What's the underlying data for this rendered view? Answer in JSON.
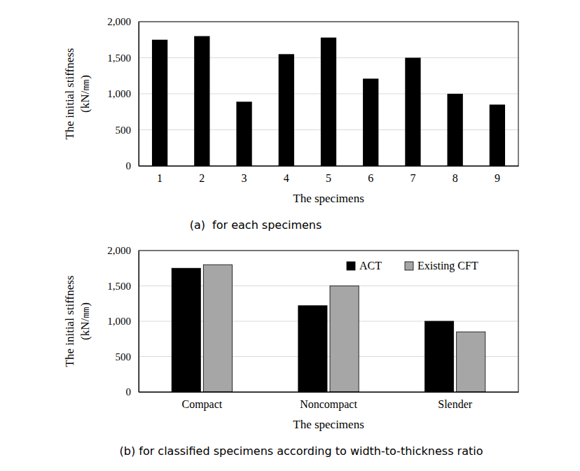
{
  "chart_data": [
    {
      "type": "bar",
      "title": "(a)  for each specimens",
      "xlabel": "The specimens",
      "ylabel": [
        "The initial stiffness",
        "(kN/㎜)"
      ],
      "categories": [
        "1",
        "2",
        "3",
        "4",
        "5",
        "6",
        "7",
        "8",
        "9"
      ],
      "values": [
        1750,
        1800,
        890,
        1550,
        1780,
        1210,
        1500,
        1000,
        850
      ],
      "color": "#000000",
      "ylim": [
        0,
        2000
      ],
      "yticks": [
        0,
        500,
        {
          "value": 1000,
          "label": "1,000"
        },
        {
          "value": 1500,
          "label": "1,500"
        },
        {
          "value": 2000,
          "label": "2,000"
        }
      ],
      "grid": true
    },
    {
      "type": "bar",
      "title": "(b) for classified specimens according to width-to-thickness ratio",
      "xlabel": "The specimens",
      "ylabel": [
        "The initial stiffness",
        "(kN/㎜)"
      ],
      "categories": [
        "Compact",
        "Noncompact",
        "Slender"
      ],
      "series": [
        {
          "name": "ACT",
          "color": "#000000",
          "values": [
            1750,
            1220,
            1000
          ]
        },
        {
          "name": "Existing CFT",
          "color": "#a6a6a6",
          "values": [
            1800,
            1500,
            850
          ]
        }
      ],
      "ylim": [
        0,
        2000
      ],
      "yticks": [
        0,
        500,
        {
          "value": 1000,
          "label": "1,000"
        },
        {
          "value": 1500,
          "label": "1,500"
        },
        {
          "value": 2000,
          "label": "2,000"
        }
      ],
      "grid": true,
      "legend": "top-right"
    }
  ]
}
